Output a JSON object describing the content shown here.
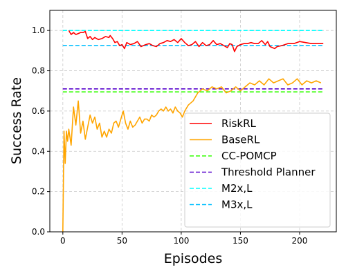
{
  "chart_data": {
    "type": "line",
    "title": "",
    "xlabel": "Episodes",
    "ylabel": "Success Rate",
    "xlim": [
      -11,
      231
    ],
    "ylim": [
      0.0,
      1.1
    ],
    "xticks": [
      0,
      50,
      100,
      150,
      200
    ],
    "yticks": [
      0.0,
      0.2,
      0.4,
      0.6,
      0.8,
      1.0
    ],
    "xtick_labels": [
      "0",
      "50",
      "100",
      "150",
      "200"
    ],
    "ytick_labels": [
      "0.0",
      "0.2",
      "0.4",
      "0.6",
      "0.8",
      "1.0"
    ],
    "grid": true,
    "legend_position": "lower-right",
    "series": [
      {
        "name": "RiskRL",
        "color": "#ff0000",
        "style": "solid",
        "x": [
          5,
          7,
          9,
          11,
          13,
          15,
          17,
          19,
          21,
          23,
          25,
          27,
          30,
          33,
          36,
          39,
          40,
          42,
          44,
          46,
          48,
          50,
          52,
          54,
          57,
          60,
          63,
          66,
          70,
          73,
          76,
          79,
          82,
          85,
          88,
          91,
          94,
          97,
          100,
          103,
          106,
          109,
          112,
          115,
          118,
          121,
          124,
          127,
          130,
          133,
          136,
          139,
          141,
          143,
          145,
          147,
          150,
          153,
          156,
          159,
          162,
          165,
          168,
          171,
          173,
          175,
          177,
          179,
          181,
          185,
          190,
          195,
          200,
          205,
          210,
          215,
          220
        ],
        "values": [
          1.0,
          0.98,
          0.99,
          0.98,
          0.985,
          0.99,
          0.99,
          0.995,
          0.96,
          0.97,
          0.955,
          0.965,
          0.955,
          0.96,
          0.97,
          0.965,
          0.975,
          0.96,
          0.94,
          0.945,
          0.925,
          0.93,
          0.91,
          0.94,
          0.93,
          0.935,
          0.945,
          0.92,
          0.93,
          0.935,
          0.925,
          0.92,
          0.935,
          0.94,
          0.95,
          0.945,
          0.955,
          0.94,
          0.96,
          0.94,
          0.925,
          0.93,
          0.945,
          0.92,
          0.94,
          0.925,
          0.93,
          0.95,
          0.93,
          0.935,
          0.925,
          0.915,
          0.935,
          0.93,
          0.895,
          0.92,
          0.93,
          0.935,
          0.935,
          0.94,
          0.935,
          0.935,
          0.95,
          0.93,
          0.945,
          0.92,
          0.915,
          0.91,
          0.92,
          0.925,
          0.935,
          0.935,
          0.945,
          0.94,
          0.935,
          0.935,
          0.935
        ]
      },
      {
        "name": "BaseRL",
        "color": "#ffa500",
        "style": "solid",
        "x": [
          0,
          1,
          2,
          3,
          4,
          5,
          7,
          9,
          11,
          13,
          15,
          17,
          19,
          21,
          23,
          25,
          27,
          29,
          31,
          33,
          35,
          37,
          39,
          41,
          43,
          45,
          47,
          49,
          51,
          53,
          55,
          57,
          59,
          61,
          63,
          65,
          67,
          69,
          71,
          73,
          75,
          77,
          79,
          81,
          83,
          85,
          87,
          89,
          91,
          93,
          95,
          97,
          99,
          101,
          103,
          106,
          110,
          114,
          118,
          122,
          126,
          130,
          134,
          138,
          142,
          146,
          150,
          154,
          158,
          162,
          166,
          170,
          174,
          178,
          182,
          186,
          190,
          194,
          198,
          202,
          206,
          210,
          214,
          218
        ],
        "values": [
          0.0,
          0.5,
          0.34,
          0.5,
          0.45,
          0.51,
          0.43,
          0.62,
          0.53,
          0.65,
          0.49,
          0.55,
          0.46,
          0.52,
          0.58,
          0.54,
          0.57,
          0.51,
          0.54,
          0.47,
          0.5,
          0.47,
          0.51,
          0.49,
          0.54,
          0.55,
          0.52,
          0.56,
          0.6,
          0.54,
          0.51,
          0.55,
          0.52,
          0.53,
          0.55,
          0.57,
          0.54,
          0.56,
          0.56,
          0.55,
          0.58,
          0.57,
          0.58,
          0.6,
          0.61,
          0.6,
          0.62,
          0.6,
          0.61,
          0.59,
          0.62,
          0.6,
          0.59,
          0.57,
          0.6,
          0.63,
          0.65,
          0.69,
          0.71,
          0.7,
          0.72,
          0.71,
          0.72,
          0.69,
          0.7,
          0.72,
          0.7,
          0.72,
          0.74,
          0.73,
          0.75,
          0.73,
          0.76,
          0.74,
          0.75,
          0.76,
          0.73,
          0.74,
          0.76,
          0.73,
          0.75,
          0.74,
          0.75,
          0.74
        ]
      },
      {
        "name": "CC-POMCP",
        "color": "#33ff00",
        "style": "dashed",
        "x": [
          0,
          220
        ],
        "values": [
          0.695,
          0.695
        ]
      },
      {
        "name": "Threshold Planner",
        "color": "#5500cc",
        "style": "dashed",
        "x": [
          0,
          220
        ],
        "values": [
          0.71,
          0.71
        ]
      },
      {
        "name": "M2x,L",
        "color": "#00ffff",
        "style": "dashed",
        "x": [
          0,
          220
        ],
        "values": [
          1.0,
          1.0
        ]
      },
      {
        "name": "M3x,L",
        "color": "#00bfff",
        "style": "dashed",
        "x": [
          0,
          220
        ],
        "values": [
          0.925,
          0.925
        ]
      }
    ]
  }
}
